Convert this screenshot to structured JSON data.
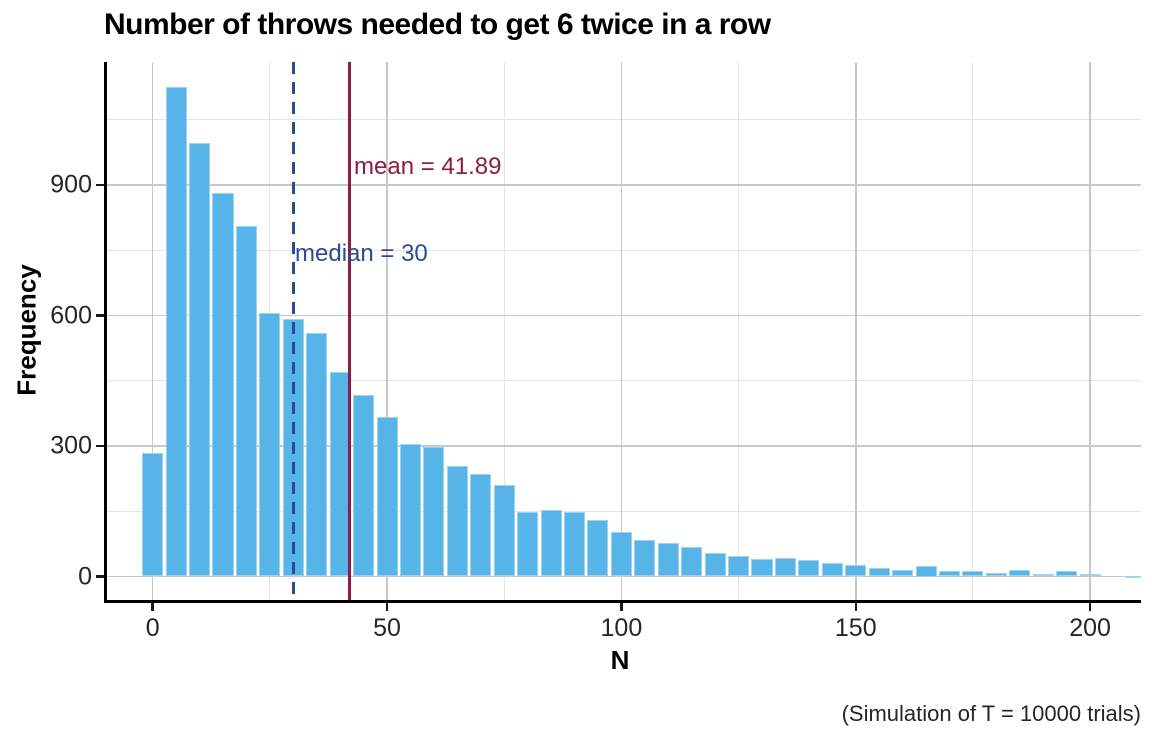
{
  "header": {
    "title": "Number of throws needed to get 6 twice in a row"
  },
  "caption": "(Simulation of T = 10000 trials)",
  "annotations": {
    "mean": {
      "label": "mean = 41.89",
      "value": 41.89,
      "color": "#8b1c43",
      "line_style": "solid"
    },
    "median": {
      "label": "median = 30",
      "value": 30,
      "color": "#2d4b91",
      "line_style": "dashed"
    }
  },
  "chart_data": {
    "type": "bar",
    "title": "Number of throws needed to get 6 twice in a row",
    "xlabel": "N",
    "ylabel": "Frequency",
    "binwidth": 5,
    "bars": [
      {
        "x": 0,
        "count": 285
      },
      {
        "x": 5,
        "count": 1126
      },
      {
        "x": 10,
        "count": 997
      },
      {
        "x": 15,
        "count": 882
      },
      {
        "x": 20,
        "count": 806
      },
      {
        "x": 25,
        "count": 605
      },
      {
        "x": 30,
        "count": 592
      },
      {
        "x": 35,
        "count": 560
      },
      {
        "x": 40,
        "count": 470
      },
      {
        "x": 45,
        "count": 418
      },
      {
        "x": 50,
        "count": 367
      },
      {
        "x": 55,
        "count": 305
      },
      {
        "x": 60,
        "count": 297
      },
      {
        "x": 65,
        "count": 253
      },
      {
        "x": 70,
        "count": 235
      },
      {
        "x": 75,
        "count": 211
      },
      {
        "x": 80,
        "count": 149
      },
      {
        "x": 85,
        "count": 153
      },
      {
        "x": 90,
        "count": 148
      },
      {
        "x": 95,
        "count": 131
      },
      {
        "x": 100,
        "count": 102
      },
      {
        "x": 105,
        "count": 83
      },
      {
        "x": 110,
        "count": 77
      },
      {
        "x": 115,
        "count": 68
      },
      {
        "x": 120,
        "count": 54
      },
      {
        "x": 125,
        "count": 47
      },
      {
        "x": 130,
        "count": 41
      },
      {
        "x": 135,
        "count": 43
      },
      {
        "x": 140,
        "count": 37
      },
      {
        "x": 145,
        "count": 30
      },
      {
        "x": 150,
        "count": 27
      },
      {
        "x": 155,
        "count": 19
      },
      {
        "x": 160,
        "count": 14
      },
      {
        "x": 165,
        "count": 25
      },
      {
        "x": 170,
        "count": 12
      },
      {
        "x": 175,
        "count": 13
      },
      {
        "x": 180,
        "count": 8
      },
      {
        "x": 185,
        "count": 14
      },
      {
        "x": 190,
        "count": 5
      },
      {
        "x": 195,
        "count": 12
      },
      {
        "x": 200,
        "count": 6
      },
      {
        "x": 210,
        "count": 2
      }
    ],
    "x_ticks": [
      0,
      50,
      100,
      150,
      200
    ],
    "y_ticks": [
      0,
      300,
      600,
      900
    ],
    "x_minor_grid": [
      25,
      75,
      125,
      175
    ],
    "y_minor_grid": [
      150,
      450,
      750,
      1050
    ],
    "xlim": [
      -10,
      211
    ],
    "ylim": [
      0,
      1182
    ],
    "grid": "on",
    "colors": {
      "bar_fill": "#56b4e9",
      "bar_border": "#9ed3f0",
      "grid_major": "#c6c9cb",
      "grid_minor": "#e3e5e6",
      "mean_line": "#8b1c43",
      "median_line": "#2d4b91"
    }
  }
}
